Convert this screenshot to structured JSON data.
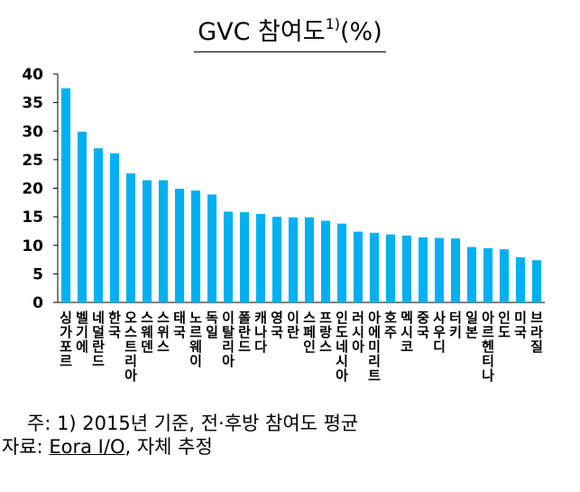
{
  "title": {
    "main": "GVC  참여도",
    "sup": "1)",
    "unit": "(%)"
  },
  "notes": {
    "line1": "주: 1) 2015년 기준, 전·후방 참여도 평균",
    "line2_prefix": "자료: ",
    "line2_source": "Eora I/O",
    "line2_suffix": ", 자체 추정"
  },
  "colors": {
    "bar": "#00B0F0",
    "axis": "#000000"
  },
  "chart_data": {
    "type": "bar",
    "title": "GVC 참여도 1)(%)",
    "categories": [
      "싱가포르",
      "벨기에",
      "네덜란드",
      "한국",
      "오스트리아",
      "스웨덴",
      "스위스",
      "태국",
      "노르웨이",
      "독일",
      "이탈리아",
      "폴란드",
      "캐나다",
      "영국",
      "이란",
      "스페인",
      "프랑스",
      "인도네시아",
      "러시아",
      "아메리트",
      "호주",
      "멕시코",
      "중국",
      "사우디",
      "터키",
      "일본",
      "아르헨티나",
      "인도",
      "미국",
      "브라질"
    ],
    "labels_display": [
      "싱가포르",
      "벨기에",
      "네덜란드",
      "한국",
      "오스트리아",
      "스웨덴",
      "스위스",
      "태국",
      "노르웨이",
      "독일",
      "이탈리아",
      "폴란드",
      "캐나다",
      "영국",
      "이란",
      "스페인",
      "프랑스",
      "인도네시아",
      "러시아",
      "아에미리트",
      "호주",
      "멕시코",
      "중국",
      "사우디",
      "터키",
      "일본",
      "아르헨티나",
      "인도",
      "미국",
      "브라질"
    ],
    "values": [
      37.5,
      29.9,
      27.0,
      26.1,
      22.6,
      21.4,
      21.4,
      19.9,
      19.6,
      18.9,
      15.9,
      15.8,
      15.5,
      15.0,
      14.9,
      14.9,
      14.3,
      13.8,
      12.4,
      12.2,
      11.9,
      11.7,
      11.4,
      11.3,
      11.2,
      9.7,
      9.5,
      9.3,
      7.9,
      7.4
    ],
    "ylim": [
      0,
      40
    ],
    "yticks": [
      0,
      5,
      10,
      15,
      20,
      25,
      30,
      35,
      40
    ],
    "xlabel": "",
    "ylabel": "",
    "grid": false,
    "legend": "none"
  }
}
